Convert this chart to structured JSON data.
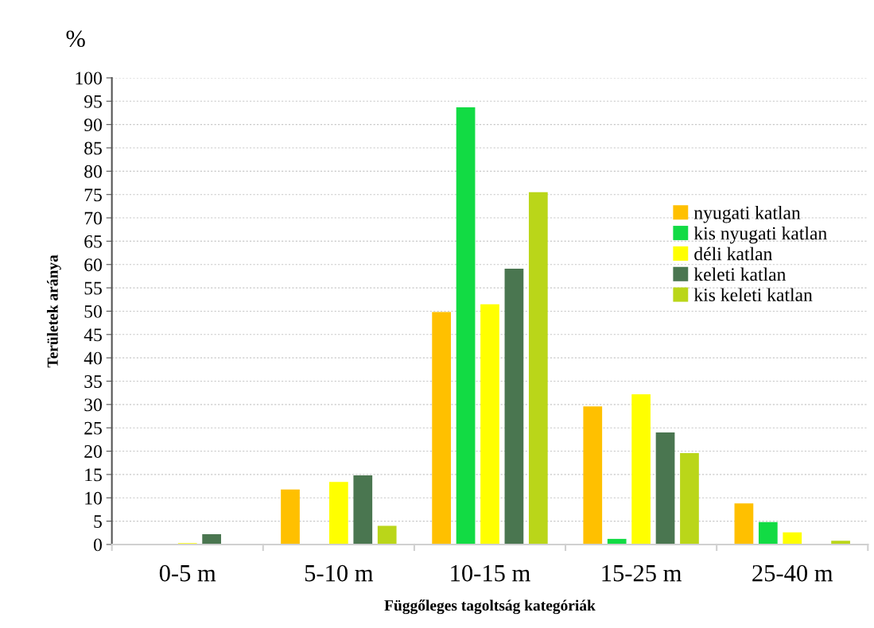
{
  "chart_data": {
    "type": "bar",
    "xlabel": "Függőleges tagoltság kategóriák",
    "ylabel": "Területek aránya",
    "annotations": [
      "%"
    ],
    "categories": [
      "0-5 m",
      "5-10 m",
      "10-15 m",
      "15-25 m",
      "25-40 m"
    ],
    "series": [
      {
        "name": "nyugati katlan",
        "color": "#ffc000",
        "values": [
          0,
          11.8,
          49.8,
          29.6,
          8.8
        ]
      },
      {
        "name": "kis nyugati katlan",
        "color": "#12db44",
        "values": [
          0,
          0,
          93.7,
          1.2,
          4.8
        ]
      },
      {
        "name": "déli katlan",
        "color": "#ffff00",
        "values": [
          0.3,
          13.4,
          51.5,
          32.2,
          2.6
        ]
      },
      {
        "name": "keleti katlan",
        "color": "#4a7650",
        "values": [
          2.2,
          14.8,
          59.1,
          24.0,
          0
        ]
      },
      {
        "name": "kis keleti katlan",
        "color": "#bad619",
        "values": [
          0,
          4.0,
          75.5,
          19.6,
          0.8
        ]
      }
    ],
    "ylim": [
      0,
      100
    ],
    "yticks": [
      0,
      5,
      10,
      15,
      20,
      25,
      30,
      35,
      40,
      45,
      50,
      55,
      60,
      65,
      70,
      75,
      80,
      85,
      90,
      95,
      100
    ],
    "grid": "y",
    "legend": "right"
  }
}
